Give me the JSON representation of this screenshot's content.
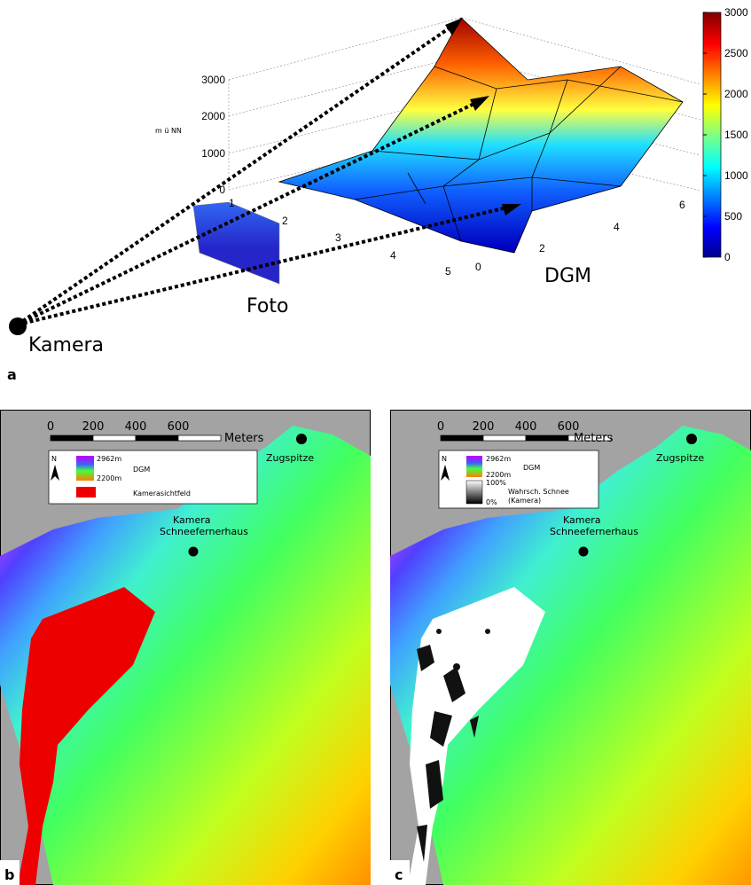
{
  "panel_a": {
    "label": "a",
    "z_axis_title": "m ü NN",
    "z_ticks": [
      "0",
      "1000",
      "2000",
      "3000"
    ],
    "foto_ticks": [
      "1",
      "2",
      "3",
      "4",
      "5"
    ],
    "dgm_ticks": [
      "0",
      "2",
      "4",
      "6"
    ],
    "colorbar_ticks": [
      "0",
      "500",
      "1000",
      "1500",
      "2000",
      "2500",
      "3000"
    ],
    "foto_label": "Foto",
    "dgm_label": "DGM",
    "camera_label": "Kamera"
  },
  "panel_b": {
    "label": "b",
    "scale_ticks": [
      "0",
      "200",
      "400",
      "600"
    ],
    "scale_unit": "Meters",
    "north": "N",
    "legend": {
      "dgm_max": "2962m",
      "dgm_min": "2200m",
      "dgm": "DGM",
      "field": "Kamerasichtfeld"
    },
    "peak": "Zugspitze",
    "station": [
      "Kamera",
      "Schneefernerhaus"
    ]
  },
  "panel_c": {
    "label": "c",
    "scale_ticks": [
      "0",
      "200",
      "400",
      "600"
    ],
    "scale_unit": "Meters",
    "north": "N",
    "legend": {
      "dgm_max": "2962m",
      "dgm_min": "2200m",
      "dgm": "DGM",
      "snow_max": "100%",
      "snow_min": "0%",
      "snow": [
        "Wahrsch. Schnee",
        "(Kamera)"
      ]
    },
    "peak": "Zugspitze",
    "station": [
      "Kamera",
      "Schneefernerhaus"
    ]
  }
}
